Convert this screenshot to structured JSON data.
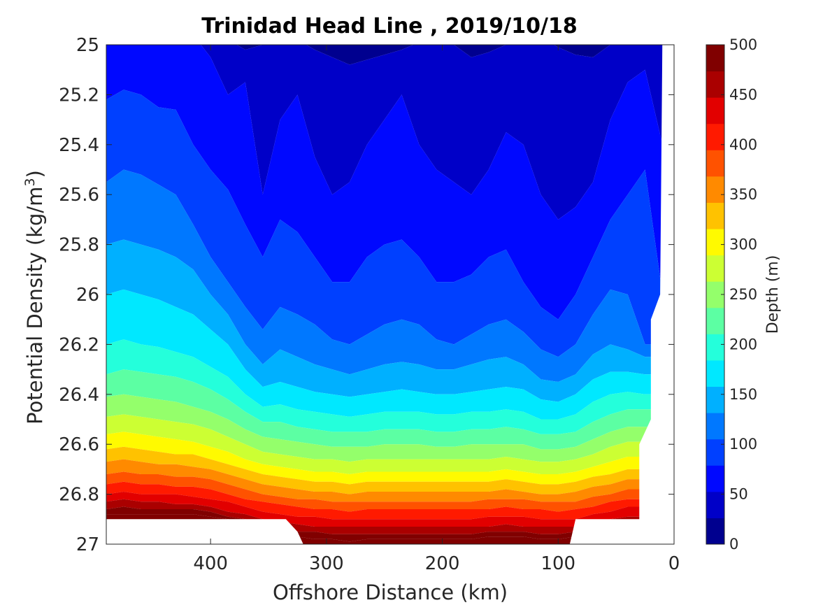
{
  "chart_data": {
    "type": "heatmap",
    "subtype": "filled-contour",
    "title": "Trinidad Head Line , 2019/10/18",
    "xlabel": "Offshore Distance (km)",
    "ylabel_text": "Potential Density (kg/m",
    "ylabel_sup": "3",
    "ylabel_close": ")",
    "xlim": [
      490,
      0
    ],
    "x_reversed": true,
    "ylim": [
      25,
      27
    ],
    "y_reversed": true,
    "xticks": [
      "400",
      "300",
      "200",
      "100",
      "0"
    ],
    "yticks": [
      "25",
      "25.2",
      "25.4",
      "25.6",
      "25.8",
      "26",
      "26.2",
      "26.4",
      "26.6",
      "26.8",
      "27"
    ],
    "colorbar": {
      "label": "Depth (m)",
      "ticks": [
        "0",
        "50",
        "100",
        "150",
        "200",
        "250",
        "300",
        "350",
        "400",
        "450",
        "500"
      ],
      "levels": [
        0,
        25,
        50,
        75,
        100,
        125,
        150,
        175,
        200,
        225,
        250,
        275,
        300,
        325,
        350,
        375,
        400,
        425,
        450,
        475,
        500
      ],
      "colormap": "jet",
      "band_colors": [
        "#00008f",
        "#0000c8",
        "#0008ff",
        "#0040ff",
        "#0078ff",
        "#00b0ff",
        "#00e8ff",
        "#24ffdb",
        "#5cffa3",
        "#94ff6b",
        "#ccff33",
        "#fffa00",
        "#ffc200",
        "#ff8a00",
        "#ff5200",
        "#ff1a00",
        "#e20000",
        "#aa0000",
        "#800000"
      ]
    },
    "grid": false,
    "x_km": [
      490,
      475,
      460,
      445,
      430,
      415,
      400,
      385,
      370,
      355,
      340,
      325,
      310,
      295,
      280,
      265,
      250,
      235,
      220,
      205,
      190,
      175,
      160,
      145,
      130,
      115,
      100,
      85,
      70,
      55,
      40,
      25,
      10
    ],
    "data_note": "depth (m) of isopycnal surfaces; each series gives the density of the given depth contour along x_km",
    "series": [
      {
        "depth": 25,
        "sigma": [
          24.95,
          24.95,
          24.95,
          24.95,
          24.95,
          24.95,
          24.95,
          24.98,
          25.02,
          25.0,
          24.98,
          24.98,
          25.02,
          25.05,
          25.08,
          25.06,
          25.04,
          25.02,
          24.99,
          24.98,
          25.0,
          25.05,
          25.03,
          25.0,
          24.98,
          24.97,
          25.01,
          25.04,
          25.05,
          25.0,
          24.97,
          24.96,
          24.96
        ]
      },
      {
        "depth": 50,
        "sigma": [
          24.95,
          24.95,
          24.95,
          24.95,
          24.95,
          24.96,
          25.05,
          25.2,
          25.15,
          25.6,
          25.3,
          25.2,
          25.45,
          25.6,
          25.55,
          25.4,
          25.3,
          25.2,
          25.4,
          25.5,
          25.55,
          25.6,
          25.5,
          25.35,
          25.4,
          25.6,
          25.7,
          25.65,
          25.55,
          25.3,
          25.15,
          25.1,
          25.4
        ]
      },
      {
        "depth": 75,
        "sigma": [
          25.22,
          25.18,
          25.2,
          25.25,
          25.26,
          25.4,
          25.5,
          25.58,
          25.72,
          25.85,
          25.7,
          25.75,
          25.85,
          25.95,
          25.95,
          25.85,
          25.8,
          25.78,
          25.85,
          25.95,
          25.95,
          25.92,
          25.85,
          25.82,
          25.95,
          26.05,
          26.1,
          26.0,
          25.85,
          25.7,
          25.6,
          25.5,
          26.0
        ]
      },
      {
        "depth": 100,
        "sigma": [
          25.55,
          25.5,
          25.52,
          25.56,
          25.6,
          25.72,
          25.85,
          25.95,
          26.05,
          26.14,
          26.05,
          26.08,
          26.12,
          26.18,
          26.2,
          26.16,
          26.12,
          26.1,
          26.12,
          26.18,
          26.2,
          26.16,
          26.12,
          26.1,
          26.15,
          26.22,
          26.25,
          26.2,
          26.08,
          25.98,
          26.0,
          26.2,
          26.2
        ]
      },
      {
        "depth": 125,
        "sigma": [
          25.8,
          25.78,
          25.8,
          25.82,
          25.85,
          25.9,
          26.0,
          26.08,
          26.2,
          26.28,
          26.22,
          26.25,
          26.28,
          26.3,
          26.32,
          26.3,
          26.28,
          26.27,
          26.28,
          26.3,
          26.3,
          26.28,
          26.26,
          26.25,
          26.28,
          26.34,
          26.35,
          26.32,
          26.24,
          26.2,
          26.22,
          26.25,
          26.25
        ]
      },
      {
        "depth": 150,
        "sigma": [
          26.0,
          25.98,
          26.0,
          26.02,
          26.05,
          26.08,
          26.14,
          26.2,
          26.3,
          26.37,
          26.35,
          26.37,
          26.39,
          26.4,
          26.41,
          26.4,
          26.39,
          26.38,
          26.39,
          26.4,
          26.4,
          26.39,
          26.38,
          26.37,
          26.38,
          26.42,
          26.43,
          26.4,
          26.34,
          26.31,
          26.31,
          26.32,
          26.32
        ]
      },
      {
        "depth": 175,
        "sigma": [
          26.2,
          26.18,
          26.2,
          26.21,
          26.23,
          26.25,
          26.29,
          26.33,
          26.4,
          26.45,
          26.44,
          26.46,
          26.47,
          26.48,
          26.49,
          26.48,
          26.47,
          26.47,
          26.47,
          26.48,
          26.48,
          26.47,
          26.47,
          26.46,
          26.47,
          26.5,
          26.5,
          26.48,
          26.43,
          26.4,
          26.39,
          26.4,
          26.4
        ]
      },
      {
        "depth": 200,
        "sigma": [
          26.32,
          26.3,
          26.31,
          26.32,
          26.33,
          26.35,
          26.38,
          26.42,
          26.47,
          26.51,
          26.51,
          26.53,
          26.54,
          26.55,
          26.55,
          26.55,
          26.54,
          26.54,
          26.54,
          26.55,
          26.55,
          26.54,
          26.54,
          26.53,
          26.54,
          26.56,
          26.56,
          26.55,
          26.51,
          26.48,
          26.46,
          26.46,
          26.46
        ]
      },
      {
        "depth": 225,
        "sigma": [
          26.41,
          26.4,
          26.41,
          26.42,
          26.43,
          26.45,
          26.47,
          26.5,
          26.54,
          26.57,
          26.58,
          26.59,
          26.6,
          26.61,
          26.61,
          26.61,
          26.6,
          26.6,
          26.6,
          26.61,
          26.61,
          26.6,
          26.6,
          26.6,
          26.6,
          26.62,
          26.62,
          26.61,
          26.58,
          26.55,
          26.53,
          26.53,
          26.53
        ]
      },
      {
        "depth": 250,
        "sigma": [
          26.49,
          26.48,
          26.49,
          26.5,
          26.51,
          26.52,
          26.54,
          26.57,
          26.6,
          26.63,
          26.64,
          26.65,
          26.66,
          26.66,
          26.67,
          26.66,
          26.66,
          26.66,
          26.66,
          26.66,
          26.66,
          26.66,
          26.66,
          26.65,
          26.66,
          26.67,
          26.67,
          26.66,
          26.64,
          26.61,
          26.59,
          26.59,
          26.59
        ]
      },
      {
        "depth": 275,
        "sigma": [
          26.56,
          26.55,
          26.56,
          26.57,
          26.58,
          26.59,
          26.61,
          26.63,
          26.66,
          26.68,
          26.69,
          26.7,
          26.71,
          26.71,
          26.72,
          26.71,
          26.71,
          26.71,
          26.71,
          26.71,
          26.71,
          26.71,
          26.71,
          26.7,
          26.71,
          26.72,
          26.72,
          26.71,
          26.69,
          26.67,
          26.65,
          26.65,
          26.65
        ]
      },
      {
        "depth": 300,
        "sigma": [
          26.62,
          26.61,
          26.62,
          26.63,
          26.64,
          26.64,
          26.66,
          26.68,
          26.7,
          26.72,
          26.73,
          26.74,
          26.75,
          26.75,
          26.76,
          26.75,
          26.75,
          26.75,
          26.75,
          26.75,
          26.75,
          26.75,
          26.75,
          26.74,
          26.75,
          26.76,
          26.76,
          26.75,
          26.73,
          26.72,
          26.7,
          26.7,
          26.7
        ]
      },
      {
        "depth": 325,
        "sigma": [
          26.67,
          26.66,
          26.67,
          26.68,
          26.68,
          26.69,
          26.7,
          26.72,
          26.74,
          26.76,
          26.77,
          26.78,
          26.79,
          26.79,
          26.8,
          26.79,
          26.79,
          26.79,
          26.79,
          26.79,
          26.79,
          26.79,
          26.79,
          26.78,
          26.79,
          26.8,
          26.8,
          26.79,
          26.77,
          26.76,
          26.74,
          26.74,
          26.74
        ]
      },
      {
        "depth": 350,
        "sigma": [
          26.72,
          26.71,
          26.72,
          26.72,
          26.73,
          26.73,
          26.74,
          26.76,
          26.78,
          26.8,
          26.81,
          26.82,
          26.82,
          26.83,
          26.83,
          26.83,
          26.83,
          26.83,
          26.83,
          26.83,
          26.83,
          26.83,
          26.82,
          26.82,
          26.82,
          26.83,
          26.83,
          26.83,
          26.81,
          26.8,
          26.78,
          26.78,
          26.78
        ]
      },
      {
        "depth": 375,
        "sigma": [
          26.76,
          26.75,
          26.76,
          26.76,
          26.77,
          26.77,
          26.78,
          26.8,
          26.82,
          26.83,
          26.84,
          26.85,
          26.86,
          26.86,
          26.87,
          26.86,
          26.86,
          26.86,
          26.86,
          26.86,
          26.86,
          26.86,
          26.86,
          26.85,
          26.86,
          26.86,
          26.87,
          26.86,
          26.85,
          26.83,
          26.82,
          26.82,
          26.82
        ]
      },
      {
        "depth": 400,
        "sigma": [
          26.8,
          26.79,
          26.8,
          26.8,
          26.8,
          26.81,
          26.82,
          26.83,
          26.85,
          26.87,
          26.88,
          26.89,
          26.89,
          26.9,
          26.9,
          26.9,
          26.9,
          26.9,
          26.9,
          26.9,
          26.9,
          26.9,
          26.89,
          26.89,
          26.89,
          26.9,
          26.9,
          26.9,
          26.88,
          26.87,
          26.85,
          26.85,
          26.85
        ]
      },
      {
        "depth": 425,
        "sigma": [
          26.83,
          26.82,
          26.83,
          26.83,
          26.84,
          26.84,
          26.85,
          26.87,
          26.88,
          26.9,
          26.91,
          26.92,
          26.93,
          26.93,
          26.93,
          26.93,
          26.93,
          26.93,
          26.93,
          26.93,
          26.93,
          26.93,
          26.93,
          26.92,
          26.93,
          26.93,
          26.93,
          26.93,
          26.92,
          26.9,
          26.89,
          26.89,
          26.89
        ]
      },
      {
        "depth": 450,
        "sigma": [
          26.86,
          26.85,
          26.86,
          26.86,
          26.86,
          26.86,
          26.87,
          26.89,
          26.9,
          26.92,
          26.94,
          26.95,
          26.95,
          26.96,
          26.96,
          26.96,
          26.96,
          26.96,
          26.96,
          26.96,
          26.96,
          26.96,
          26.95,
          26.95,
          26.95,
          26.96,
          26.96,
          26.95,
          26.94,
          26.92,
          26.91,
          26.91,
          26.91
        ]
      },
      {
        "depth": 475,
        "sigma": [
          26.88,
          26.88,
          26.88,
          26.88,
          26.88,
          26.88,
          26.89,
          26.9,
          26.91,
          26.93,
          26.96,
          26.97,
          26.98,
          26.98,
          26.99,
          26.98,
          26.98,
          26.98,
          26.98,
          26.98,
          26.98,
          26.98,
          26.97,
          26.97,
          26.97,
          26.98,
          26.98,
          26.97,
          26.96,
          26.94,
          26.93,
          26.93,
          26.93
        ]
      }
    ],
    "mask_note": "white (no data) regions: below 26.9 at x>325 and x<85 km; right edge where x<25 km",
    "bottom_edge": {
      "x_km": [
        490,
        335,
        325,
        320,
        90,
        85,
        30,
        30,
        20,
        20,
        12,
        10
      ],
      "sigma": [
        26.9,
        26.9,
        26.95,
        27.0,
        27.0,
        26.9,
        26.9,
        26.6,
        26.5,
        26.1,
        26.0,
        24.95
      ]
    }
  }
}
